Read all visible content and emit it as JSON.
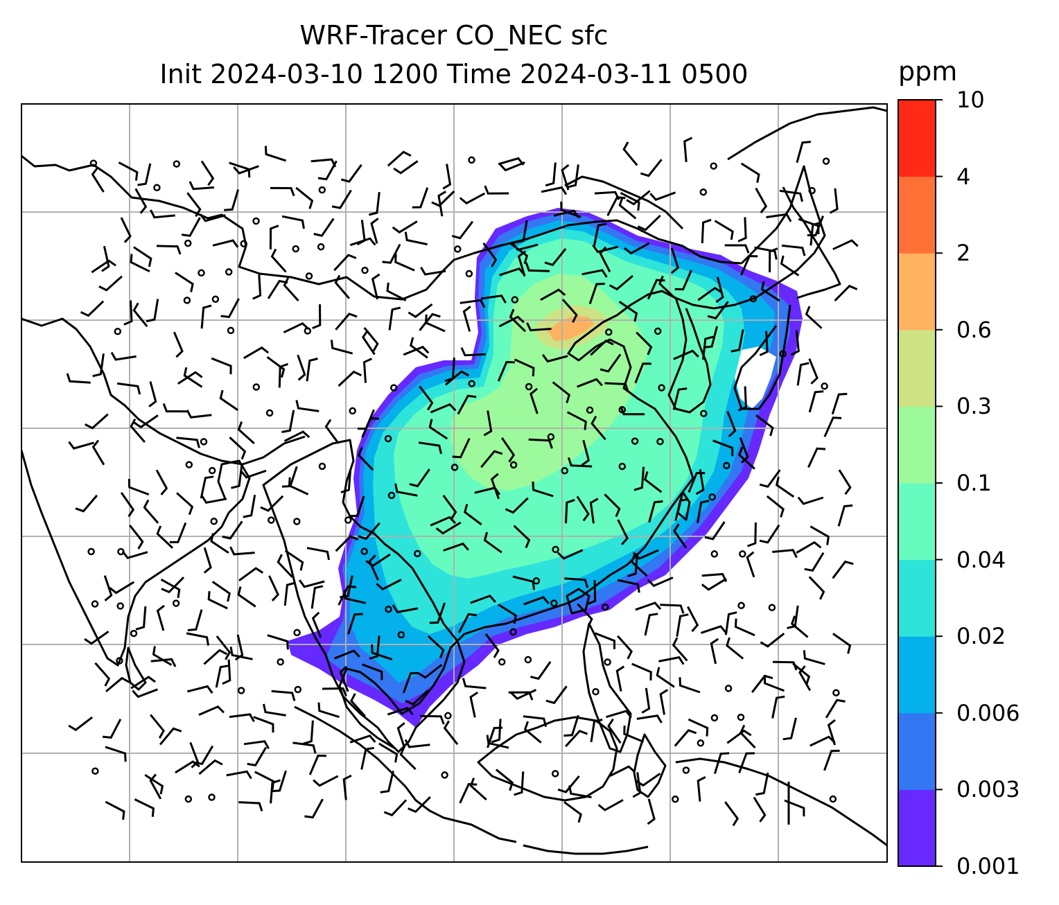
{
  "title": {
    "line1": "WRF-Tracer CO_NEC sfc",
    "line2": "Init 2024-03-10 1200 Time 2024-03-11 0500"
  },
  "colorbar": {
    "unit": "ppm",
    "levels": [
      "0.001",
      "0.003",
      "0.006",
      "0.02",
      "0.04",
      "0.1",
      "0.3",
      "0.6",
      "2",
      "4",
      "10"
    ],
    "colors": [
      "#6629ff",
      "#3377f2",
      "#04b1ea",
      "#2ee3da",
      "#67fcbf",
      "#9cfa9c",
      "#cee284",
      "#ffb260",
      "#ff7137",
      "#ff2916"
    ]
  },
  "map": {
    "gridlines": true,
    "coastline_color": "#000000",
    "grid_color": "#b0b0b0"
  }
}
